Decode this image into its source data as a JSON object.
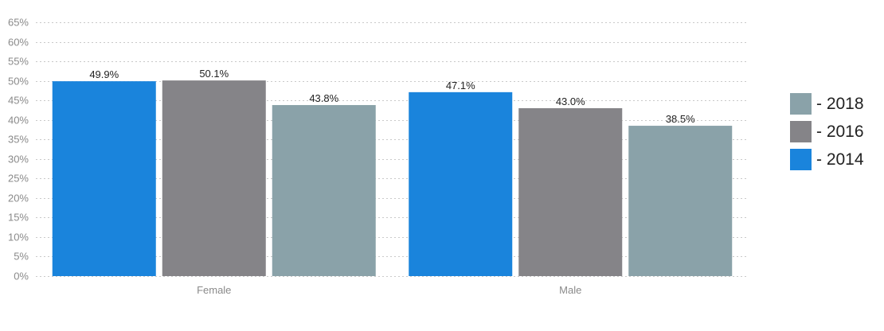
{
  "chart_data": {
    "type": "bar",
    "categories": [
      "Female",
      "Male"
    ],
    "series": [
      {
        "name": "2014",
        "color": "#1a84dc",
        "values": [
          49.9,
          47.1
        ]
      },
      {
        "name": "2016",
        "color": "#858488",
        "values": [
          50.1,
          43.0
        ]
      },
      {
        "name": "2018",
        "color": "#8aa2a9",
        "values": [
          43.8,
          38.5
        ]
      }
    ],
    "data_labels": [
      [
        "49.9%",
        "47.1%"
      ],
      [
        "50.1%",
        "43.0%"
      ],
      [
        "43.8%",
        "38.5%"
      ]
    ],
    "ylim": [
      0,
      65
    ],
    "yticks": [
      0,
      5,
      10,
      15,
      20,
      25,
      30,
      35,
      40,
      45,
      50,
      55,
      60,
      65
    ],
    "ytick_labels": [
      "0%",
      "5%",
      "10%",
      "15%",
      "20%",
      "25%",
      "30%",
      "35%",
      "40%",
      "45%",
      "50%",
      "55%",
      "60%",
      "65%"
    ],
    "grid": true,
    "legend_placement": "right",
    "legend": [
      {
        "label": "- 2018",
        "color": "#8aa2a9"
      },
      {
        "label": "- 2016",
        "color": "#858488"
      },
      {
        "label": "- 2014",
        "color": "#1a84dc"
      }
    ]
  }
}
